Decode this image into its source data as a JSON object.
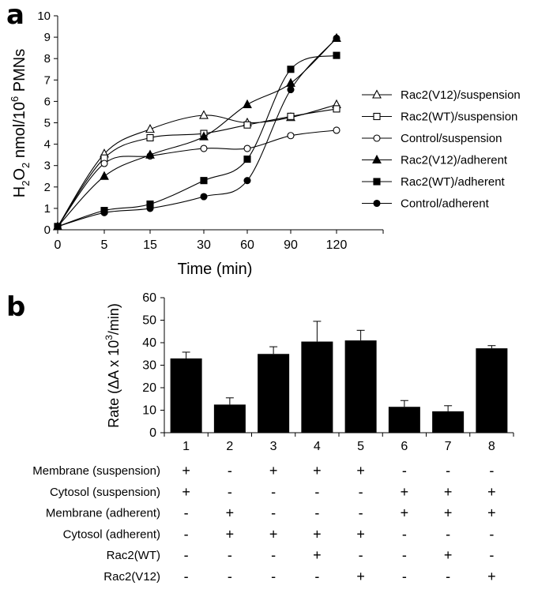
{
  "panel_a": {
    "letter": "a",
    "chart_data": {
      "type": "line",
      "title": "",
      "xlabel": "Time (min)",
      "ylabel": {
        "main": "H",
        "sub1": "2",
        "mid": "O",
        "sub2": "2",
        "after": " nmol/10",
        "sup": "6",
        "end": " PMNs"
      },
      "x_categories": [
        "0",
        "5",
        "15",
        "30",
        "60",
        "90",
        "120"
      ],
      "ylim": [
        0,
        10
      ],
      "yticks": [
        "0",
        "1",
        "2",
        "3",
        "4",
        "5",
        "6",
        "7",
        "8",
        "9",
        "10"
      ],
      "legend_position": "right",
      "series": [
        {
          "name": "Rac2(V12)/suspension",
          "marker": "triangle-open",
          "values": [
            0.15,
            3.55,
            4.7,
            5.35,
            5.0,
            5.25,
            5.85
          ]
        },
        {
          "name": "Rac2(WT)/suspension",
          "marker": "square-open",
          "values": [
            0.15,
            3.35,
            4.3,
            4.5,
            4.9,
            5.3,
            5.65
          ]
        },
        {
          "name": "Control/suspension",
          "marker": "circle-open",
          "values": [
            0.15,
            3.1,
            3.45,
            3.8,
            3.8,
            4.4,
            4.65
          ]
        },
        {
          "name": "Rac2(V12)/adherent",
          "marker": "triangle-filled",
          "values": [
            0.15,
            2.5,
            3.5,
            4.35,
            5.85,
            6.85,
            8.95
          ]
        },
        {
          "name": "Rac2(WT)/adherent",
          "marker": "square-filled",
          "values": [
            0.15,
            0.9,
            1.2,
            2.3,
            3.3,
            7.5,
            8.15
          ]
        },
        {
          "name": "Control/adherent",
          "marker": "circle-filled",
          "values": [
            0.15,
            0.8,
            1.0,
            1.55,
            2.3,
            6.55,
            8.95
          ]
        }
      ]
    }
  },
  "panel_b": {
    "letter": "b",
    "chart_data": {
      "type": "bar",
      "title": "",
      "xlabel": "",
      "ylabel": {
        "pre": "Rate (",
        "delta": "Δ",
        "mid": "A x 10",
        "sup": "3",
        "end": "/min)"
      },
      "categories": [
        "1",
        "2",
        "3",
        "4",
        "5",
        "6",
        "7",
        "8"
      ],
      "values": [
        33,
        12.5,
        35,
        40.5,
        41,
        11.5,
        9.5,
        37.5
      ],
      "errors": [
        2.8,
        3.0,
        3.2,
        9.0,
        4.5,
        2.8,
        2.5,
        1.2
      ],
      "ylim": [
        0,
        60
      ],
      "yticks": [
        "0",
        "10",
        "20",
        "30",
        "40",
        "50",
        "60"
      ],
      "bar_color": "#000000",
      "conditions": [
        {
          "label": "Membrane (suspension)",
          "marks": [
            "+",
            "-",
            "+",
            "+",
            "+",
            "-",
            "-",
            "-"
          ]
        },
        {
          "label": "Cytosol (suspension)",
          "marks": [
            "+",
            "-",
            "-",
            "-",
            "-",
            "+",
            "+",
            "+"
          ]
        },
        {
          "label": "Membrane (adherent)",
          "marks": [
            "-",
            "+",
            "-",
            "-",
            "-",
            "+",
            "+",
            "+"
          ]
        },
        {
          "label": "Cytosol (adherent)",
          "marks": [
            "-",
            "+",
            "+",
            "+",
            "+",
            "-",
            "-",
            "-"
          ]
        },
        {
          "label": "Rac2(WT)",
          "marks": [
            "-",
            "-",
            "-",
            "+",
            "-",
            "-",
            "+",
            "-"
          ]
        },
        {
          "label": "Rac2(V12)",
          "marks": [
            "-",
            "-",
            "-",
            "-",
            "+",
            "-",
            "-",
            "+"
          ]
        }
      ]
    }
  }
}
